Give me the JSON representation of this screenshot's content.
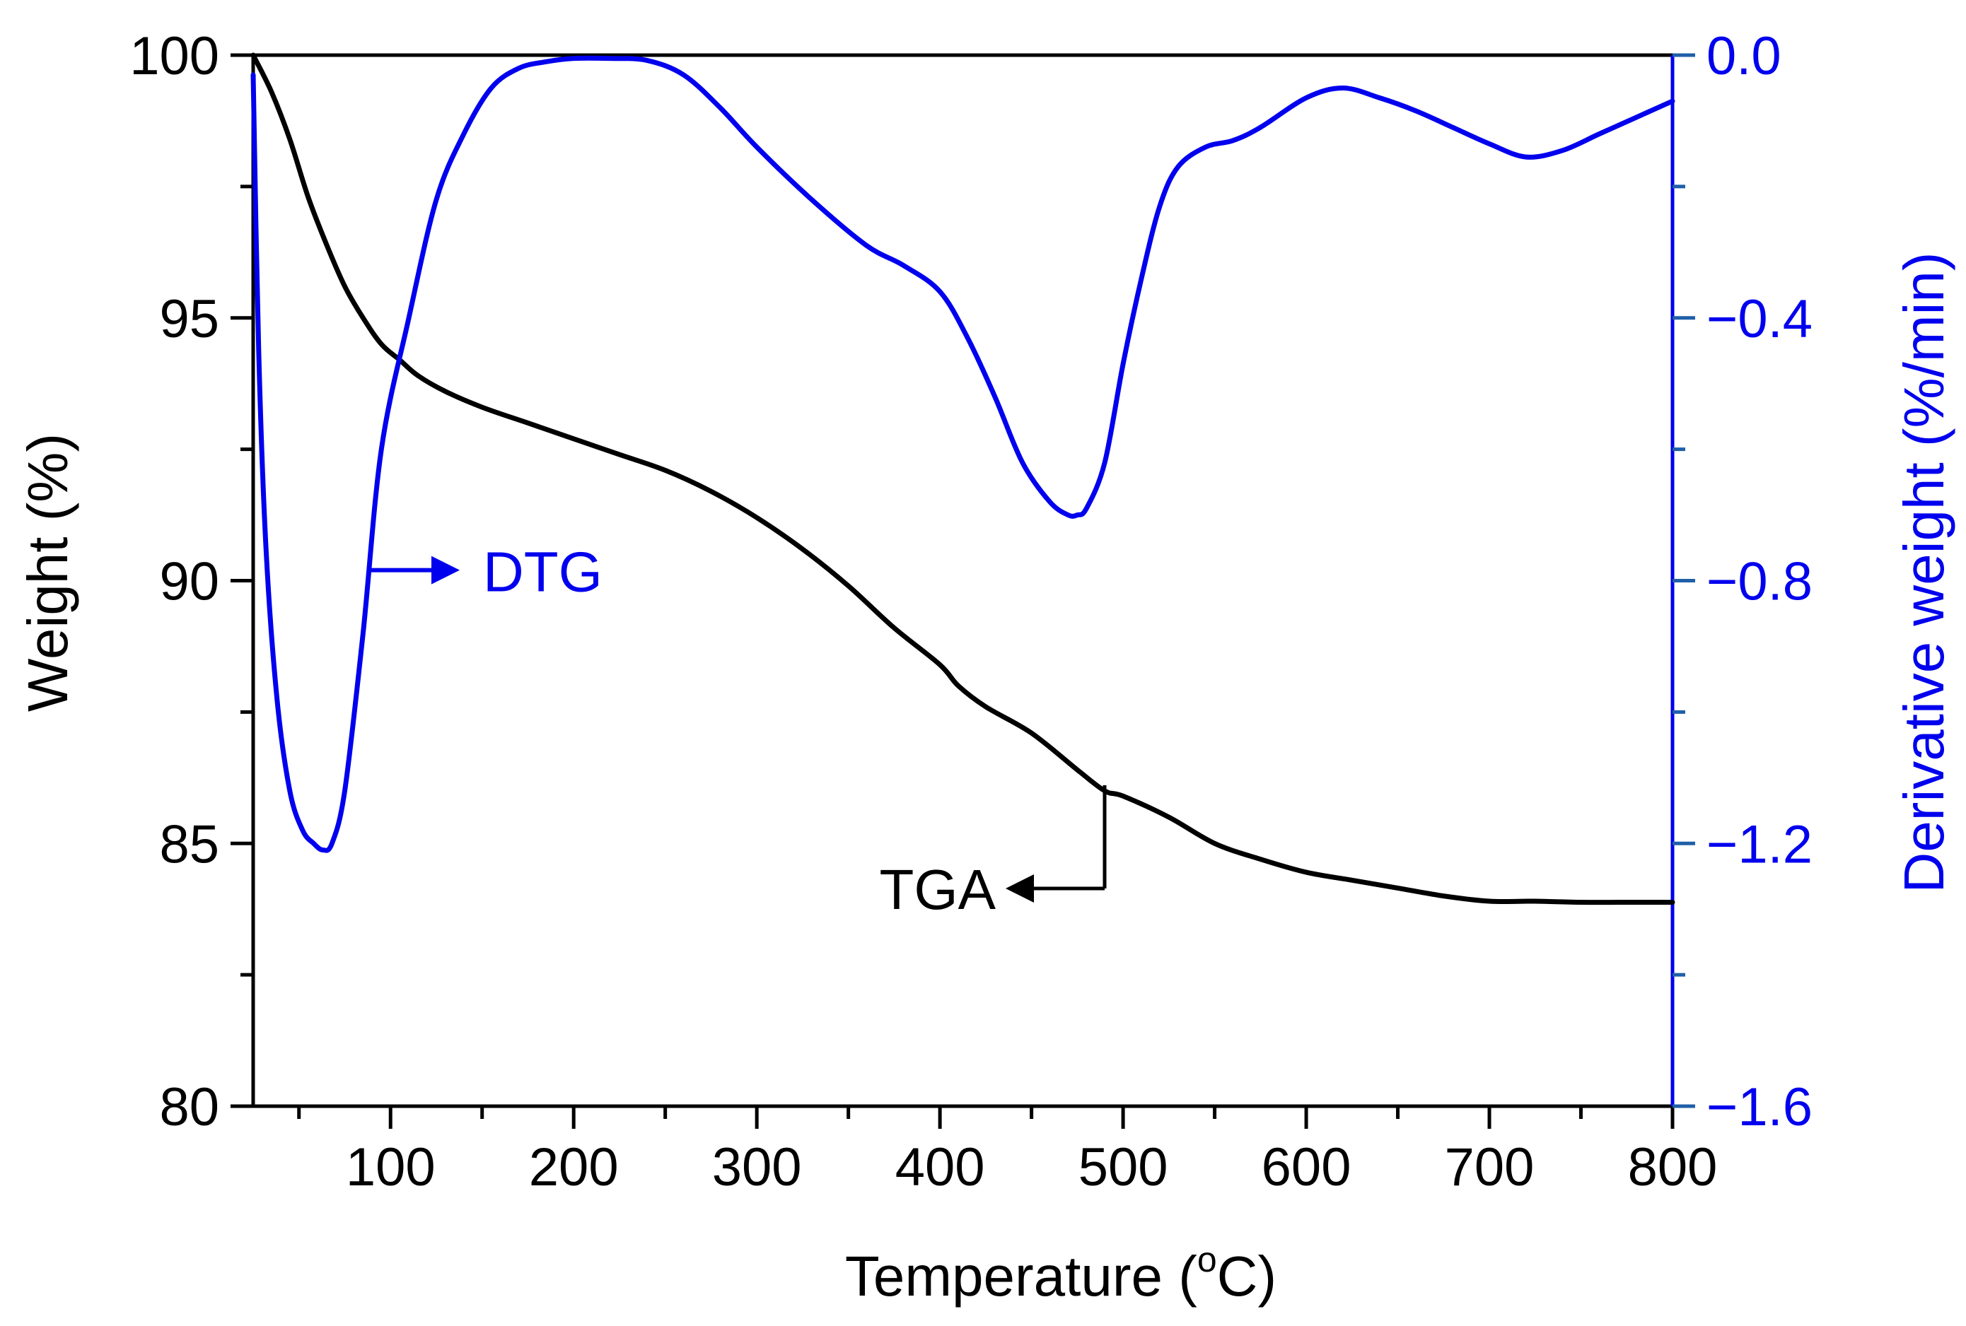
{
  "chart_data": {
    "type": "line",
    "title": "",
    "xlabel": "Temperature (",
    "xlabel_sup": "o",
    "xlabel_tail": "C)",
    "ylabel": "Weight (%)",
    "y2label": "Derivative weight (%/min)",
    "xlim": [
      25,
      800
    ],
    "ylim": [
      80,
      100
    ],
    "y2lim": [
      -1.6,
      0.0
    ],
    "x_ticks": [
      "100",
      "200",
      "300",
      "400",
      "500",
      "600",
      "700",
      "800"
    ],
    "y_ticks": [
      "80",
      "85",
      "90",
      "95",
      "100"
    ],
    "y2_ticks": [
      "0.0",
      "−0.4",
      "−0.8",
      "−1.2",
      "−1.6"
    ],
    "colors": {
      "tga": "#000000",
      "dtg": "#0000ee",
      "right_axis": "#0000ee",
      "right_ticks": "#1f5fa8"
    },
    "series": [
      {
        "name": "TGA",
        "axis": "left",
        "x": [
          25,
          35,
          45,
          55,
          65,
          75,
          85,
          95,
          105,
          115,
          130,
          150,
          175,
          200,
          225,
          250,
          275,
          300,
          325,
          350,
          375,
          400,
          410,
          425,
          450,
          475,
          490,
          500,
          525,
          550,
          575,
          600,
          625,
          650,
          675,
          700,
          725,
          750,
          775,
          800
        ],
        "values": [
          100.0,
          99.3,
          98.4,
          97.3,
          96.4,
          95.6,
          95.0,
          94.5,
          94.2,
          93.9,
          93.6,
          93.3,
          93.0,
          92.7,
          92.4,
          92.1,
          91.7,
          91.2,
          90.6,
          89.9,
          89.1,
          88.4,
          88.0,
          87.6,
          87.1,
          86.4,
          86.0,
          85.9,
          85.5,
          85.0,
          84.7,
          84.45,
          84.3,
          84.15,
          84.0,
          83.9,
          83.9,
          83.88,
          83.88,
          83.88
        ]
      },
      {
        "name": "DTG",
        "axis": "right",
        "x": [
          25,
          28,
          32,
          38,
          45,
          52,
          58,
          63,
          68,
          75,
          85,
          95,
          110,
          125,
          140,
          155,
          170,
          185,
          200,
          220,
          240,
          260,
          280,
          300,
          330,
          360,
          380,
          400,
          415,
          430,
          445,
          460,
          470,
          475,
          480,
          490,
          500,
          510,
          520,
          530,
          545,
          560,
          575,
          600,
          620,
          640,
          660,
          680,
          700,
          720,
          740,
          760,
          780,
          800
        ],
        "values": [
          -0.03,
          -0.45,
          -0.75,
          -0.98,
          -1.12,
          -1.18,
          -1.2,
          -1.21,
          -1.2,
          -1.12,
          -0.88,
          -0.6,
          -0.4,
          -0.22,
          -0.12,
          -0.05,
          -0.02,
          -0.01,
          -0.005,
          -0.005,
          -0.008,
          -0.03,
          -0.08,
          -0.14,
          -0.22,
          -0.29,
          -0.32,
          -0.36,
          -0.43,
          -0.52,
          -0.62,
          -0.68,
          -0.7,
          -0.7,
          -0.69,
          -0.62,
          -0.47,
          -0.34,
          -0.23,
          -0.17,
          -0.14,
          -0.13,
          -0.11,
          -0.065,
          -0.05,
          -0.065,
          -0.085,
          -0.11,
          -0.135,
          -0.155,
          -0.145,
          -0.12,
          -0.095,
          -0.07
        ]
      }
    ],
    "annotations": [
      {
        "text": "DTG",
        "arrow": "right",
        "points_to": "right-axis",
        "at_x": 85,
        "at_y": 90.2
      },
      {
        "text": "TGA",
        "arrow": "left",
        "points_to": "left-axis",
        "at_x": 490,
        "at_y": 86
      }
    ]
  }
}
